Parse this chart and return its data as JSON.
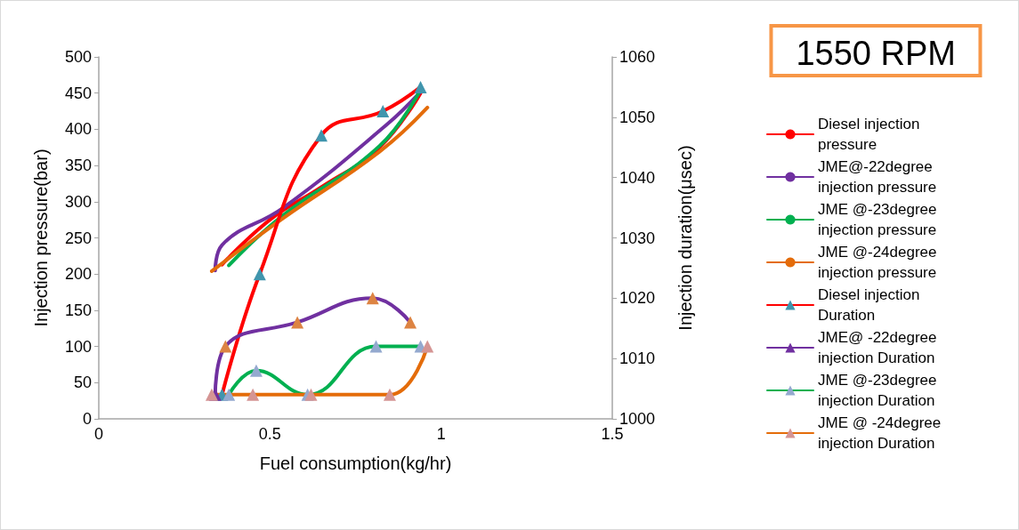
{
  "chart_data": {
    "type": "line",
    "title": "1550 RPM",
    "xlabel": "Fuel consumption(kg/hr)",
    "ylabel": "Injection pressure(bar)",
    "y2label": "Injection duration(μsec)",
    "xlim": [
      0,
      1.5
    ],
    "xticks": [
      0,
      0.5,
      1,
      1.5
    ],
    "ylim": [
      0,
      500
    ],
    "yticks": [
      0,
      50,
      100,
      150,
      200,
      250,
      300,
      350,
      400,
      450,
      500
    ],
    "y2lim": [
      1000,
      1060
    ],
    "y2ticks": [
      1000,
      1010,
      1020,
      1030,
      1040,
      1050,
      1060
    ],
    "grid": false,
    "legend": "right",
    "line_style": "solid",
    "series": [
      {
        "name": "Diesel injection pressure",
        "color": "#ff0000",
        "marker": "none",
        "x": [
          0.36,
          0.5,
          0.65,
          0.82,
          0.94
        ],
        "values": [
          213,
          275,
          320,
          375,
          450
        ]
      },
      {
        "name": "JME@-22degree injection pressure",
        "color": "#7030a0",
        "marker": "none",
        "x": [
          0.34,
          0.36,
          0.54,
          0.84,
          0.94
        ],
        "values": [
          205,
          240,
          292,
          406,
          452
        ]
      },
      {
        "name": "JME @-23degree injection pressure",
        "color": "#00b050",
        "marker": "none",
        "x": [
          0.38,
          0.535,
          0.82,
          0.94
        ],
        "values": [
          212,
          280,
          377,
          455
        ]
      },
      {
        "name": "JME @-24degree injection pressure",
        "color": "#e46c0a",
        "marker": "none",
        "x": [
          0.33,
          0.535,
          0.82,
          0.96
        ],
        "values": [
          204,
          276,
          369,
          430
        ]
      },
      {
        "name": "Diesel injection Duration",
        "color": "#ff0000",
        "axis": "y2",
        "marker": "triangle",
        "colors": [
          "#4095ad",
          "#4095ad",
          "#4095ad",
          "#4095ad",
          "#4095ad"
        ],
        "x": [
          0.36,
          0.47,
          0.65,
          0.83,
          0.94
        ],
        "values": [
          1004,
          1024,
          1047,
          1051,
          1055
        ]
      },
      {
        "name": "JME@ -22degree injection Duration",
        "color": "#7030a0",
        "axis": "y2",
        "marker": "triangle",
        "colors": [
          "#7030a0",
          "#dd8443",
          "#dd8443",
          "#dd8443",
          "#dd8443"
        ],
        "x": [
          0.34,
          0.37,
          0.58,
          0.8,
          0.91
        ],
        "values": [
          1004,
          1012,
          1016,
          1020,
          1016
        ]
      },
      {
        "name": "JME @-23degree injection Duration",
        "color": "#00b050",
        "axis": "y2",
        "marker": "triangle",
        "colors": [
          "#94a9cf",
          "#94a9cf",
          "#94a9cf",
          "#94a9cf",
          "#94a9cf"
        ],
        "x": [
          0.38,
          0.46,
          0.61,
          0.81,
          0.94
        ],
        "values": [
          1004,
          1008,
          1004,
          1012,
          1012
        ]
      },
      {
        "name": "JME @ -24degree injection Duration",
        "color": "#e46c0a",
        "axis": "y2",
        "marker": "triangle",
        "colors": [
          "#d59594",
          "#d59594",
          "#d59594",
          "#d59594",
          "#d59594"
        ],
        "x": [
          0.33,
          0.45,
          0.62,
          0.85,
          0.96
        ],
        "values": [
          1004,
          1004,
          1004,
          1004,
          1012
        ]
      }
    ]
  }
}
